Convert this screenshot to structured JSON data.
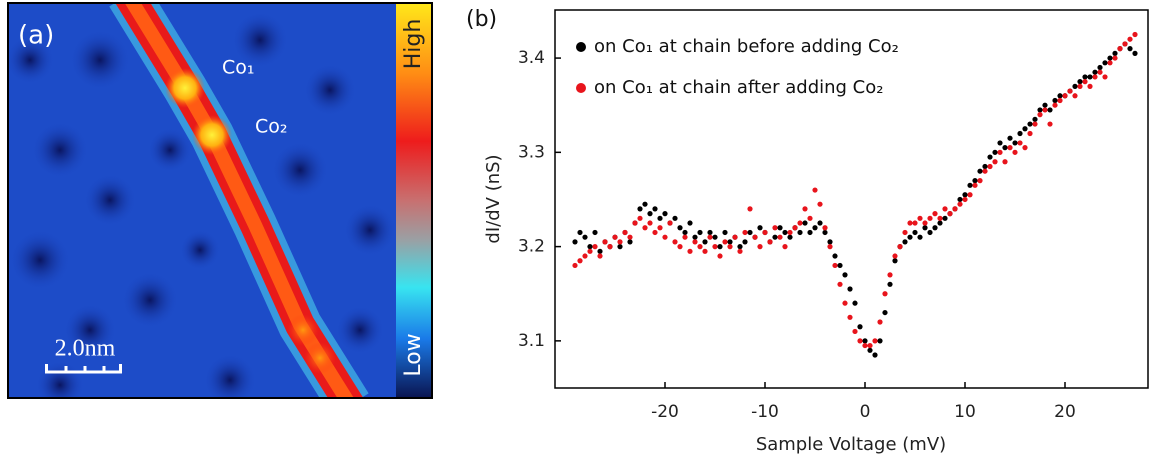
{
  "image": {
    "panel_label": "(a)",
    "labels": [
      "Co₁",
      "Co₂"
    ],
    "scale_bar": "2.0nm",
    "colorbar": {
      "high": "High",
      "low": "Low"
    }
  },
  "chart_data": {
    "type": "scatter",
    "panel_label": "(b)",
    "x_label": "Sample Voltage (mV)",
    "y_label": "dI/dV (nS)",
    "xlim": [
      -31,
      28.3
    ],
    "ylim": [
      3.05,
      3.451
    ],
    "xticks": [
      -20,
      -10,
      0,
      10,
      20
    ],
    "yticks": [
      3.1,
      3.2,
      3.3,
      3.4
    ],
    "legend": "upper-left",
    "x": [
      -29,
      -28.5,
      -28,
      -27.5,
      -27,
      -26.5,
      -26,
      -25.5,
      -25,
      -24.5,
      -24,
      -23.5,
      -23,
      -22.5,
      -22,
      -21.5,
      -21,
      -20.5,
      -20,
      -19.5,
      -19,
      -18.5,
      -18,
      -17.5,
      -17,
      -16.5,
      -16,
      -15.5,
      -15,
      -14.5,
      -14,
      -13.5,
      -13,
      -12.5,
      -12,
      -11.5,
      -11,
      -10.5,
      -10,
      -9.5,
      -9,
      -8.5,
      -8,
      -7.5,
      -7,
      -6.5,
      -6,
      -5.5,
      -5,
      -4.5,
      -4,
      -3.5,
      -3,
      -2.5,
      -2,
      -1.5,
      -1,
      -0.5,
      0,
      0.5,
      1,
      1.5,
      2,
      2.5,
      3,
      3.5,
      4,
      4.5,
      5,
      5.5,
      6,
      6.5,
      7,
      7.5,
      8,
      8.5,
      9,
      9.5,
      10,
      10.5,
      11,
      11.5,
      12,
      12.5,
      13,
      13.5,
      14,
      14.5,
      15,
      15.5,
      16,
      16.5,
      17,
      17.5,
      18,
      18.5,
      19,
      19.5,
      20,
      20.5,
      21,
      21.5,
      22,
      22.5,
      23,
      23.5,
      24,
      24.5,
      25,
      25.5,
      26,
      26.5,
      27
    ],
    "series": [
      {
        "name": "on Co₁ at chain before adding Co₂",
        "color": "#000000",
        "values": [
          3.205,
          3.215,
          3.21,
          3.2,
          3.215,
          3.195,
          3.205,
          3.2,
          3.21,
          3.2,
          3.215,
          3.205,
          3.225,
          3.24,
          3.245,
          3.235,
          3.24,
          3.23,
          3.235,
          3.225,
          3.23,
          3.22,
          3.215,
          3.225,
          3.21,
          3.215,
          3.205,
          3.215,
          3.21,
          3.2,
          3.215,
          3.205,
          3.21,
          3.2,
          3.205,
          3.215,
          3.21,
          3.22,
          3.215,
          3.205,
          3.21,
          3.22,
          3.215,
          3.21,
          3.22,
          3.215,
          3.225,
          3.215,
          3.22,
          3.225,
          3.215,
          3.205,
          3.19,
          3.18,
          3.17,
          3.155,
          3.14,
          3.115,
          3.1,
          3.09,
          3.085,
          3.1,
          3.13,
          3.16,
          3.185,
          3.2,
          3.205,
          3.21,
          3.215,
          3.21,
          3.22,
          3.215,
          3.22,
          3.225,
          3.23,
          3.235,
          3.24,
          3.25,
          3.255,
          3.265,
          3.27,
          3.28,
          3.285,
          3.295,
          3.3,
          3.31,
          3.305,
          3.315,
          3.31,
          3.32,
          3.325,
          3.33,
          3.335,
          3.345,
          3.35,
          3.345,
          3.355,
          3.36,
          3.36,
          3.365,
          3.37,
          3.375,
          3.38,
          3.38,
          3.385,
          3.39,
          3.395,
          3.4,
          3.405,
          3.41,
          3.415,
          3.41,
          3.405
        ]
      },
      {
        "name": "on Co₁ at chain after adding Co₂",
        "color": "#e8141c",
        "values": [
          3.18,
          3.185,
          3.19,
          3.195,
          3.2,
          3.19,
          3.205,
          3.2,
          3.21,
          3.205,
          3.215,
          3.21,
          3.225,
          3.23,
          3.22,
          3.225,
          3.215,
          3.22,
          3.21,
          3.225,
          3.205,
          3.2,
          3.21,
          3.195,
          3.205,
          3.2,
          3.195,
          3.21,
          3.2,
          3.19,
          3.205,
          3.2,
          3.21,
          3.195,
          3.215,
          3.24,
          3.21,
          3.2,
          3.215,
          3.205,
          3.22,
          3.21,
          3.2,
          3.215,
          3.22,
          3.225,
          3.24,
          3.23,
          3.26,
          3.245,
          3.22,
          3.2,
          3.18,
          3.16,
          3.14,
          3.125,
          3.11,
          3.1,
          3.095,
          3.095,
          3.1,
          3.12,
          3.15,
          3.17,
          3.19,
          3.2,
          3.215,
          3.225,
          3.225,
          3.23,
          3.225,
          3.23,
          3.235,
          3.23,
          3.24,
          3.235,
          3.24,
          3.245,
          3.25,
          3.255,
          3.265,
          3.27,
          3.28,
          3.285,
          3.29,
          3.3,
          3.29,
          3.305,
          3.3,
          3.31,
          3.305,
          3.32,
          3.33,
          3.34,
          3.345,
          3.33,
          3.35,
          3.355,
          3.36,
          3.365,
          3.36,
          3.37,
          3.375,
          3.37,
          3.38,
          3.385,
          3.38,
          3.395,
          3.4,
          3.41,
          3.415,
          3.42,
          3.425
        ]
      }
    ]
  }
}
